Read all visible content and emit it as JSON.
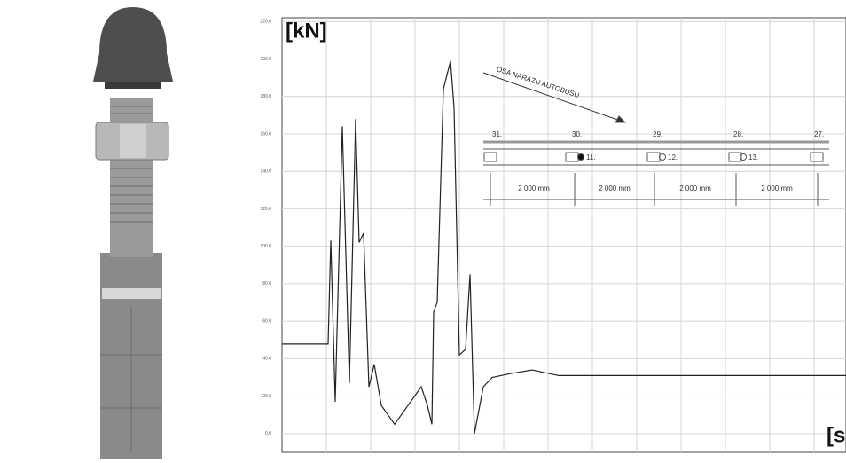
{
  "chart_data": {
    "type": "line",
    "title": "[kN]",
    "x_label": "[s",
    "x": [
      0,
      1.04,
      1.1,
      1.2,
      1.36,
      1.52,
      1.66,
      1.74,
      1.84,
      1.96,
      2.08,
      2.24,
      2.54,
      2.84,
      3.14,
      3.28,
      3.38,
      3.42,
      3.5,
      3.64,
      3.8,
      3.88,
      4.0,
      4.14,
      4.24,
      4.34,
      4.54,
      4.74,
      5.14,
      5.64,
      6.24,
      7.64,
      9.64,
      12.72
    ],
    "values": [
      47.8,
      47.8,
      103,
      17,
      164,
      27,
      168,
      102,
      107,
      25,
      37,
      15,
      5,
      15,
      25,
      15,
      5,
      65,
      70,
      184,
      199,
      174,
      42,
      45,
      85,
      0,
      25,
      30,
      32,
      34,
      31,
      31,
      31,
      31
    ],
    "color": "#222222",
    "xlim": [
      0,
      12.72
    ],
    "xticks": [
      1,
      2,
      3,
      4,
      5,
      6,
      7,
      8,
      9,
      10,
      11,
      12
    ],
    "ylim": [
      -10,
      222
    ],
    "yticks": [
      {
        "value": 0,
        "label": "0.0"
      },
      {
        "value": 20,
        "label": "20.0"
      },
      {
        "value": 40,
        "label": "40.0"
      },
      {
        "value": 60,
        "label": "60.0"
      },
      {
        "value": 80,
        "label": "80.0"
      },
      {
        "value": 100,
        "label": "100.0"
      },
      {
        "value": 120,
        "label": "120.0"
      },
      {
        "value": 140,
        "label": "140.0"
      },
      {
        "value": 160,
        "label": "160.0"
      },
      {
        "value": 180,
        "label": "180.0"
      },
      {
        "value": 200,
        "label": "200.0"
      },
      {
        "value": 220,
        "label": "220.0"
      }
    ],
    "grid": true,
    "annotations": {
      "impact_axis": "OSA NÁRAZU AUTOBUSU",
      "posts": [
        "31.",
        "30.",
        "29.",
        "28.",
        "27."
      ],
      "sensors": [
        "11.",
        "12.",
        "13."
      ],
      "spacings": [
        "2 000 mm",
        "2 000 mm",
        "2 000 mm",
        "2 000 mm"
      ]
    }
  }
}
